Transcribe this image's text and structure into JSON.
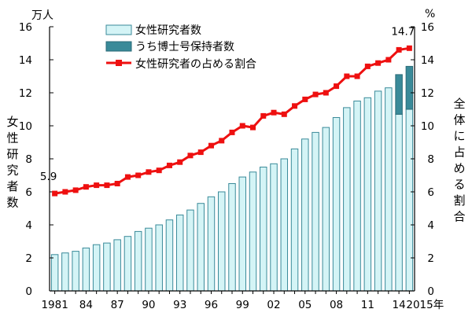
{
  "chart_data": {
    "type": "bar",
    "left_unit": "万人",
    "right_unit": "%",
    "left_axis_label": "女性研究者数",
    "right_axis_label": "全体に占める割合",
    "left_ylim": [
      0,
      16
    ],
    "right_ylim": [
      0,
      16
    ],
    "yticks": [
      "0",
      "2",
      "4",
      "6",
      "8",
      "10",
      "12",
      "14",
      "16"
    ],
    "grid": false,
    "legend_position": "top",
    "years": [
      1981,
      1982,
      1983,
      1984,
      1985,
      1986,
      1987,
      1988,
      1989,
      1990,
      1991,
      1992,
      1993,
      1994,
      1995,
      1996,
      1997,
      1998,
      1999,
      2000,
      2001,
      2002,
      2003,
      2004,
      2005,
      2006,
      2007,
      2008,
      2009,
      2010,
      2011,
      2012,
      2013,
      2014,
      2015
    ],
    "x_tick_labels": [
      {
        "index": 0,
        "label": "1981"
      },
      {
        "index": 3,
        "label": "84"
      },
      {
        "index": 6,
        "label": "87"
      },
      {
        "index": 9,
        "label": "90"
      },
      {
        "index": 12,
        "label": "93"
      },
      {
        "index": 15,
        "label": "96"
      },
      {
        "index": 18,
        "label": "99"
      },
      {
        "index": 21,
        "label": "02"
      },
      {
        "index": 24,
        "label": "05"
      },
      {
        "index": 27,
        "label": "08"
      },
      {
        "index": 30,
        "label": "11"
      },
      {
        "index": 33,
        "label": "14"
      },
      {
        "index": 34,
        "label": "2015年"
      }
    ],
    "series": [
      {
        "name": "女性研究者数",
        "kind": "bar",
        "color": "#d4f4f6",
        "stroke": "#3a8a99",
        "values": [
          2.2,
          2.3,
          2.4,
          2.6,
          2.8,
          2.9,
          3.1,
          3.3,
          3.6,
          3.8,
          4.0,
          4.3,
          4.6,
          4.9,
          5.3,
          5.7,
          6.0,
          6.5,
          6.9,
          7.2,
          7.5,
          7.7,
          8.0,
          8.6,
          9.2,
          9.6,
          9.9,
          10.5,
          11.1,
          11.5,
          11.7,
          12.1,
          12.3,
          10.7,
          11.0
        ]
      },
      {
        "name": "うち博士号保持者数",
        "kind": "bar-overlay",
        "color": "#3a8a99",
        "values": [
          null,
          null,
          null,
          null,
          null,
          null,
          null,
          null,
          null,
          null,
          null,
          null,
          null,
          null,
          null,
          null,
          null,
          null,
          null,
          null,
          null,
          null,
          null,
          null,
          null,
          null,
          null,
          null,
          null,
          null,
          null,
          null,
          null,
          2.4,
          2.6
        ]
      },
      {
        "name": "女性研究者の占める割合",
        "kind": "line",
        "axis": "right",
        "color": "#ee1010",
        "values": [
          5.9,
          6.0,
          6.1,
          6.3,
          6.4,
          6.4,
          6.5,
          6.9,
          7.0,
          7.2,
          7.3,
          7.6,
          7.8,
          8.2,
          8.4,
          8.8,
          9.1,
          9.6,
          10.0,
          9.9,
          10.6,
          10.8,
          10.7,
          11.2,
          11.6,
          11.9,
          12.0,
          12.4,
          13.0,
          13.0,
          13.6,
          13.8,
          14.0,
          14.6,
          14.7
        ]
      }
    ],
    "annotations": [
      {
        "index": 0,
        "text": "5.9"
      },
      {
        "index": 34,
        "text": "14.7"
      }
    ]
  }
}
